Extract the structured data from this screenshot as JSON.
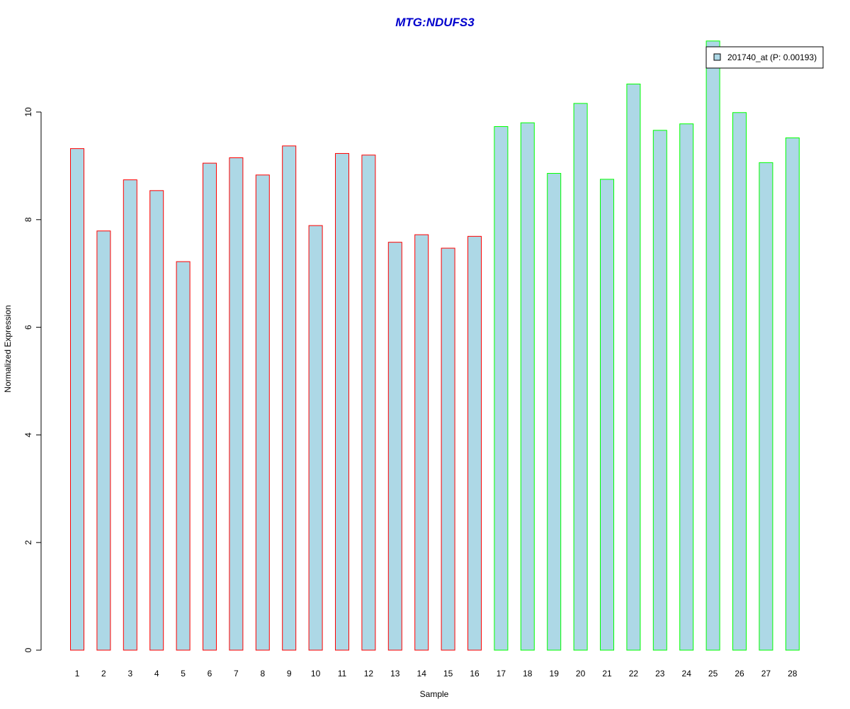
{
  "chart_data": {
    "type": "bar",
    "title": "MTG:NDUFS3",
    "xlabel": "Sample",
    "ylabel": "Normalized Expression",
    "ylim": [
      0,
      11.5
    ],
    "yticks": [
      0,
      2,
      4,
      6,
      8,
      10
    ],
    "categories": [
      "1",
      "2",
      "3",
      "4",
      "5",
      "6",
      "7",
      "8",
      "9",
      "10",
      "11",
      "12",
      "13",
      "14",
      "15",
      "16",
      "17",
      "18",
      "19",
      "20",
      "21",
      "22",
      "23",
      "24",
      "25",
      "26",
      "27",
      "28"
    ],
    "values": [
      9.32,
      7.79,
      8.74,
      8.54,
      7.22,
      9.05,
      9.15,
      8.83,
      9.37,
      7.89,
      9.23,
      9.2,
      7.58,
      7.72,
      7.47,
      7.69,
      9.73,
      9.8,
      8.86,
      10.16,
      8.75,
      10.52,
      9.66,
      9.78,
      11.32,
      9.99,
      9.06,
      9.52
    ],
    "groups": [
      "red",
      "red",
      "red",
      "red",
      "red",
      "red",
      "red",
      "red",
      "red",
      "red",
      "red",
      "red",
      "red",
      "red",
      "red",
      "red",
      "green",
      "green",
      "green",
      "green",
      "green",
      "green",
      "green",
      "green",
      "green",
      "green",
      "green",
      "green"
    ],
    "legend": {
      "label": "201740_at (P: 0.00193)",
      "position": "top-right"
    },
    "colors": {
      "fill": "#add8e6",
      "group_red": "#ff0000",
      "group_green": "#00ff00",
      "title": "#0000cd"
    },
    "grid": false
  }
}
